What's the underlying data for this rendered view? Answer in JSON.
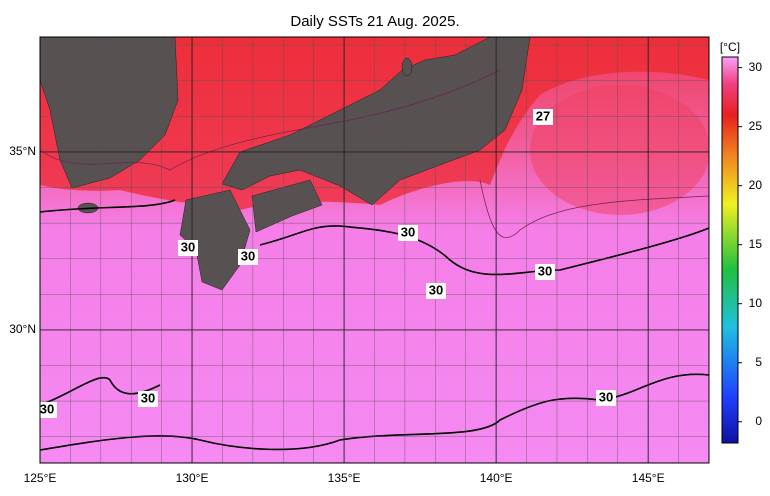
{
  "chart_data": {
    "type": "map",
    "title": "Daily SSTs 21 Aug. 2025.",
    "xlim": [
      125,
      147
    ],
    "ylim": [
      26.26,
      38.23
    ],
    "xticks": [
      {
        "value": 125,
        "label": "125°E"
      },
      {
        "value": 130,
        "label": "130°E"
      },
      {
        "value": 135,
        "label": "135°E"
      },
      {
        "value": 140,
        "label": "140°E"
      },
      {
        "value": 145,
        "label": "145°E"
      }
    ],
    "yticks": [
      {
        "value": 30,
        "label": "30°N"
      },
      {
        "value": 35,
        "label": "35°N"
      }
    ],
    "grid": true,
    "grid_step": 1,
    "colorbar": {
      "label": "[°C]",
      "lim": [
        -1.8,
        30.9
      ],
      "ticks": [
        0,
        5,
        10,
        15,
        20,
        25,
        30
      ]
    },
    "contour_labels": [
      "27",
      "30",
      "30",
      "30",
      "30",
      "30",
      "30",
      "30",
      "30"
    ]
  }
}
